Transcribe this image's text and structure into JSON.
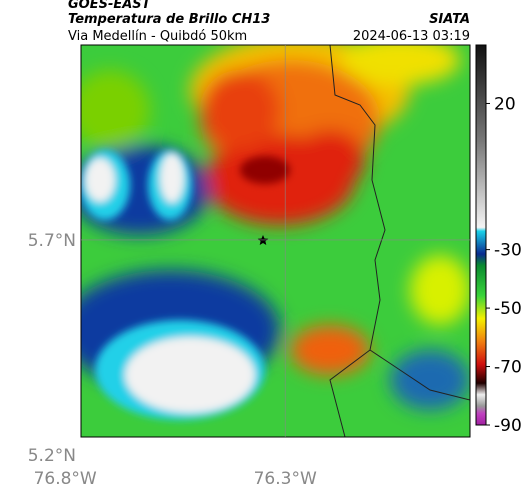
{
  "header": {
    "source": "GOES-EAST",
    "title": "Temperatura de Brillo CH13",
    "brand": "SIATA",
    "subtitle": "Via Medellín - Quibdó 50km",
    "datetime": "2024-06-13 03:19"
  },
  "map": {
    "lon_lim": [
      -76.764,
      -75.88
    ],
    "lat_lim": [
      5.242,
      6.153
    ],
    "lat_ticks": [
      {
        "value": 5.7,
        "label": "5.7°N"
      },
      {
        "value": 5.2,
        "label": "5.2°N"
      }
    ],
    "lon_ticks": [
      {
        "value": -76.8,
        "label": "76.8°W"
      },
      {
        "value": -76.3,
        "label": "76.3°W"
      }
    ],
    "grid": true
  },
  "colorbar": {
    "lim": [
      -90,
      40
    ],
    "ticks": [
      20,
      -30,
      -50,
      -70,
      -90
    ]
  }
}
